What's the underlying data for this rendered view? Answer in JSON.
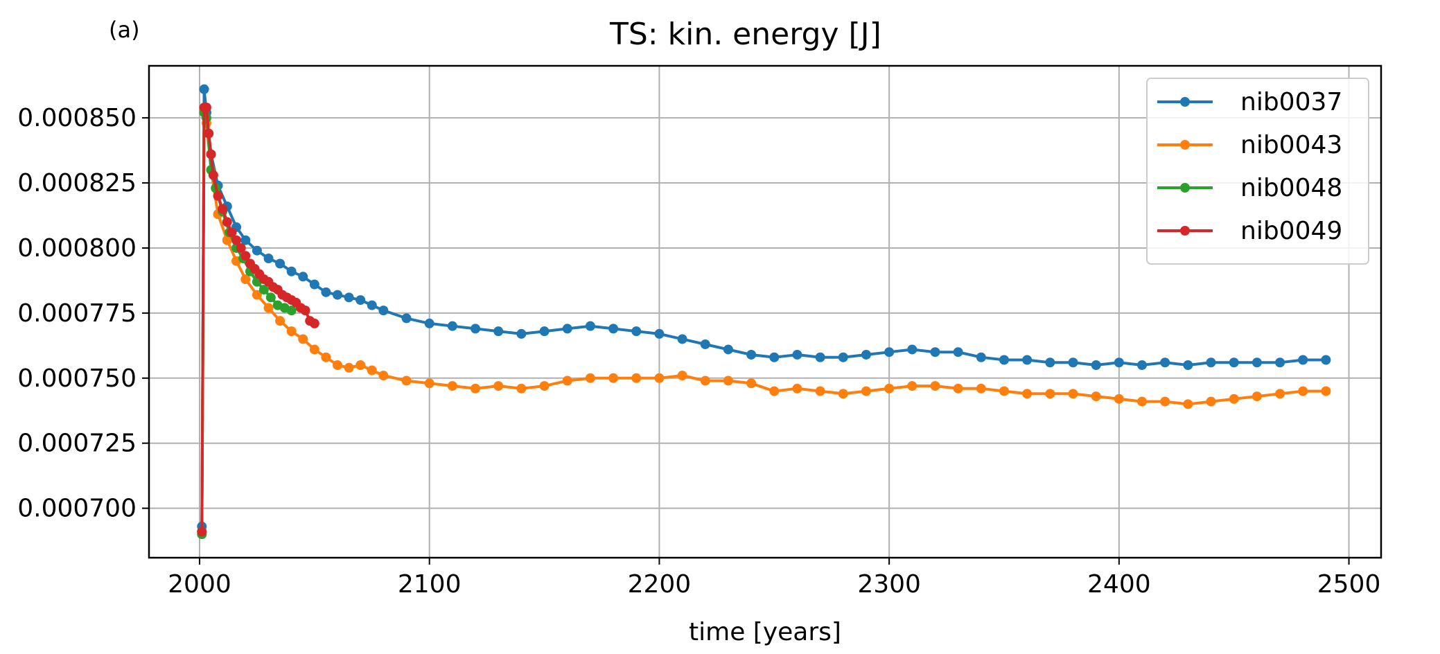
{
  "panel_label": "(a)",
  "chart_data": {
    "type": "line",
    "title": "TS: kin. energy [J]",
    "xlabel": "time [years]",
    "ylabel": "",
    "xlim": [
      1978,
      2514
    ],
    "ylim": [
      0.000681,
      0.00087
    ],
    "xticks": [
      2000,
      2100,
      2200,
      2300,
      2400,
      2500
    ],
    "xtick_labels": [
      "2000",
      "2100",
      "2200",
      "2300",
      "2400",
      "2500"
    ],
    "yticks": [
      0.0007,
      0.000725,
      0.00075,
      0.000775,
      0.0008,
      0.000825,
      0.00085
    ],
    "ytick_labels": [
      "0.000700",
      "0.000725",
      "0.000750",
      "0.000775",
      "0.000800",
      "0.000825",
      "0.000850"
    ],
    "grid": true,
    "legend_position": "top-right",
    "markers": "dot",
    "series": [
      {
        "name": "nib0037",
        "color": "#1f77b4",
        "x": [
          2001,
          2002,
          2003,
          2005,
          2008,
          2012,
          2016,
          2020,
          2025,
          2030,
          2035,
          2040,
          2045,
          2050,
          2055,
          2060,
          2065,
          2070,
          2075,
          2080,
          2090,
          2100,
          2110,
          2120,
          2130,
          2140,
          2150,
          2160,
          2170,
          2180,
          2190,
          2200,
          2210,
          2220,
          2230,
          2240,
          2250,
          2260,
          2270,
          2280,
          2290,
          2300,
          2310,
          2320,
          2330,
          2340,
          2350,
          2360,
          2370,
          2380,
          2390,
          2400,
          2410,
          2420,
          2430,
          2440,
          2450,
          2460,
          2470,
          2480,
          2490
        ],
        "y": [
          0.000693,
          0.000861,
          0.000852,
          0.000836,
          0.000824,
          0.000816,
          0.000808,
          0.000803,
          0.000799,
          0.000796,
          0.000794,
          0.000791,
          0.000789,
          0.000786,
          0.000783,
          0.000782,
          0.000781,
          0.00078,
          0.000778,
          0.000776,
          0.000773,
          0.000771,
          0.00077,
          0.000769,
          0.000768,
          0.000767,
          0.000768,
          0.000769,
          0.00077,
          0.000769,
          0.000768,
          0.000767,
          0.000765,
          0.000763,
          0.000761,
          0.000759,
          0.000758,
          0.000759,
          0.000758,
          0.000758,
          0.000759,
          0.00076,
          0.000761,
          0.00076,
          0.00076,
          0.000758,
          0.000757,
          0.000757,
          0.000756,
          0.000756,
          0.000755,
          0.000756,
          0.000755,
          0.000756,
          0.000755,
          0.000756,
          0.000756,
          0.000756,
          0.000756,
          0.000757,
          0.000757
        ]
      },
      {
        "name": "nib0043",
        "color": "#ff7f0e",
        "x": [
          2001,
          2002,
          2003,
          2005,
          2008,
          2012,
          2016,
          2020,
          2025,
          2030,
          2035,
          2040,
          2045,
          2050,
          2055,
          2060,
          2065,
          2070,
          2075,
          2080,
          2090,
          2100,
          2110,
          2120,
          2130,
          2140,
          2150,
          2160,
          2170,
          2180,
          2190,
          2200,
          2210,
          2220,
          2230,
          2240,
          2250,
          2260,
          2270,
          2280,
          2290,
          2300,
          2310,
          2320,
          2330,
          2340,
          2350,
          2360,
          2370,
          2380,
          2390,
          2400,
          2410,
          2420,
          2430,
          2440,
          2450,
          2460,
          2470,
          2480,
          2490
        ],
        "y": [
          0.000691,
          0.000853,
          0.000848,
          0.00083,
          0.000813,
          0.000803,
          0.000795,
          0.000788,
          0.000782,
          0.000777,
          0.000772,
          0.000768,
          0.000765,
          0.000761,
          0.000758,
          0.000755,
          0.000754,
          0.000755,
          0.000753,
          0.000751,
          0.000749,
          0.000748,
          0.000747,
          0.000746,
          0.000747,
          0.000746,
          0.000747,
          0.000749,
          0.00075,
          0.00075,
          0.00075,
          0.00075,
          0.000751,
          0.000749,
          0.000749,
          0.000748,
          0.000745,
          0.000746,
          0.000745,
          0.000744,
          0.000745,
          0.000746,
          0.000747,
          0.000747,
          0.000746,
          0.000746,
          0.000745,
          0.000744,
          0.000744,
          0.000744,
          0.000743,
          0.000742,
          0.000741,
          0.000741,
          0.00074,
          0.000741,
          0.000742,
          0.000743,
          0.000744,
          0.000745,
          0.000745
        ]
      },
      {
        "name": "nib0048",
        "color": "#2ca02c",
        "x": [
          2001,
          2002,
          2003,
          2005,
          2007,
          2010,
          2013,
          2016,
          2019,
          2022,
          2025,
          2028,
          2031,
          2034,
          2037,
          2040
        ],
        "y": [
          0.00069,
          0.000852,
          0.00085,
          0.00083,
          0.000823,
          0.000814,
          0.000806,
          0.0008,
          0.000796,
          0.000791,
          0.000787,
          0.000784,
          0.000781,
          0.000778,
          0.000777,
          0.000776
        ]
      },
      {
        "name": "nib0049",
        "color": "#d62728",
        "x": [
          2001,
          2002,
          2003,
          2004,
          2005,
          2006,
          2008,
          2010,
          2012,
          2014,
          2016,
          2018,
          2020,
          2022,
          2024,
          2026,
          2028,
          2030,
          2032,
          2034,
          2036,
          2038,
          2040,
          2042,
          2044,
          2046,
          2048,
          2050
        ],
        "y": [
          0.000691,
          0.000854,
          0.000854,
          0.000844,
          0.000836,
          0.000828,
          0.00082,
          0.000815,
          0.00081,
          0.000806,
          0.000803,
          0.0008,
          0.000797,
          0.000794,
          0.000792,
          0.00079,
          0.000788,
          0.000787,
          0.000785,
          0.000784,
          0.000782,
          0.000781,
          0.00078,
          0.000779,
          0.000777,
          0.000776,
          0.000772,
          0.000771
        ]
      }
    ]
  }
}
